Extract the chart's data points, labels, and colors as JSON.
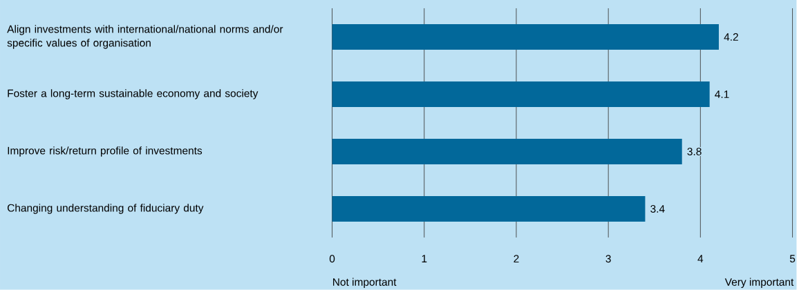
{
  "chart_data": {
    "type": "bar",
    "orientation": "horizontal",
    "categories": [
      "Align investments with international/national norms and/or specific values of organisation",
      "Foster a long-term sustainable economy and society",
      "Improve risk/return profile of investments",
      "Changing understanding of fiduciary duty"
    ],
    "values": [
      4.2,
      4.1,
      3.8,
      3.4
    ],
    "color": "#02689a",
    "xlim": [
      0,
      5
    ],
    "xticks": [
      0,
      1,
      2,
      3,
      4,
      5
    ],
    "grid": "x",
    "data_labels": true,
    "annotations": [
      "Not important",
      "Very important"
    ]
  }
}
